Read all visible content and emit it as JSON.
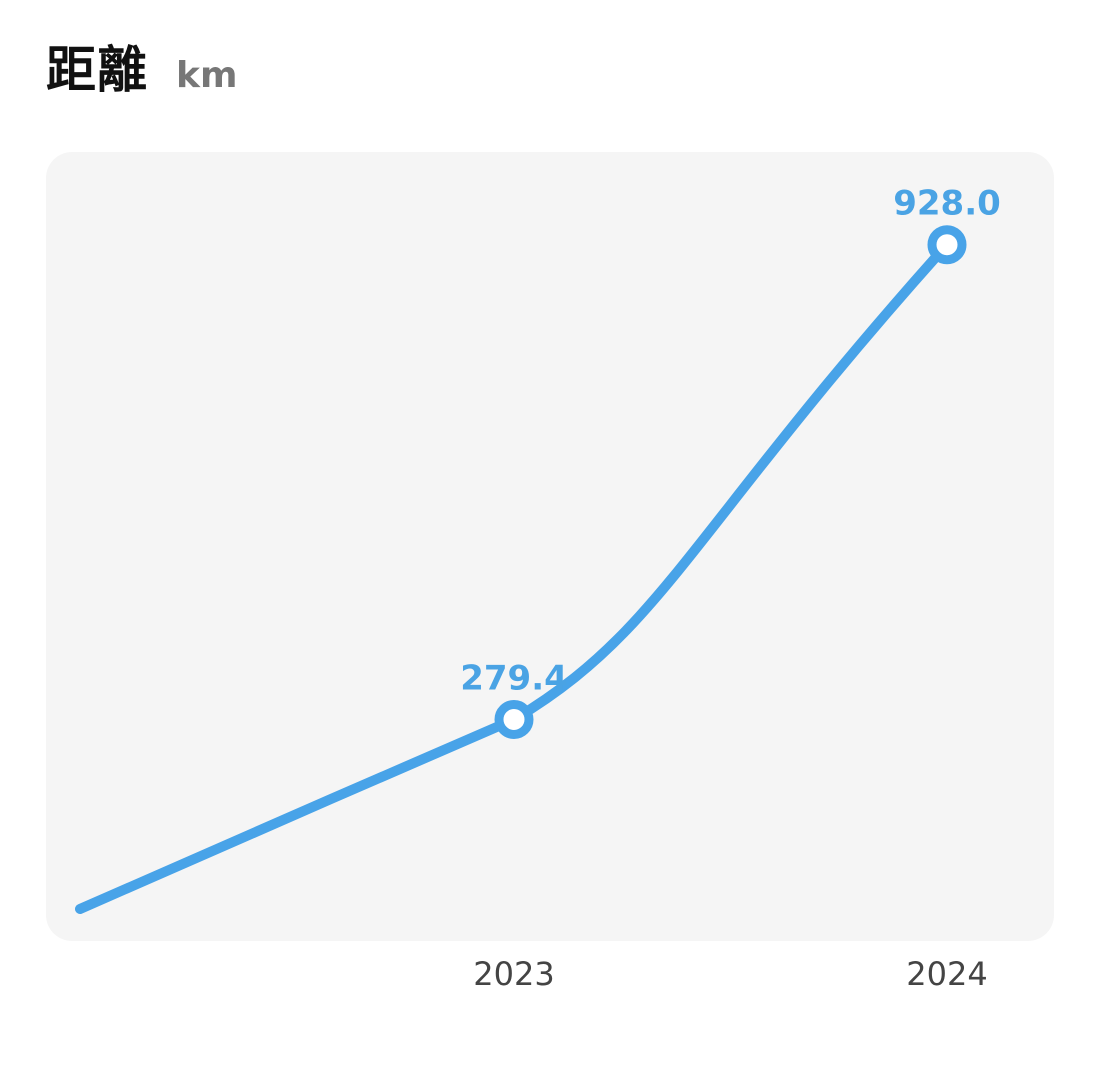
{
  "header": {
    "title": "距離",
    "unit": "km"
  },
  "chart_data": {
    "type": "line",
    "title": "距離",
    "ylabel": "km",
    "categories": [
      "2023",
      "2024"
    ],
    "series": [
      {
        "values": [
          279.4,
          928.0
        ],
        "labels": [
          "279.4",
          "928.0"
        ]
      }
    ],
    "ylim": [
      0,
      1000
    ],
    "grid": false,
    "line_color": "#48a3e8",
    "background_color": "#f5f5f5"
  }
}
